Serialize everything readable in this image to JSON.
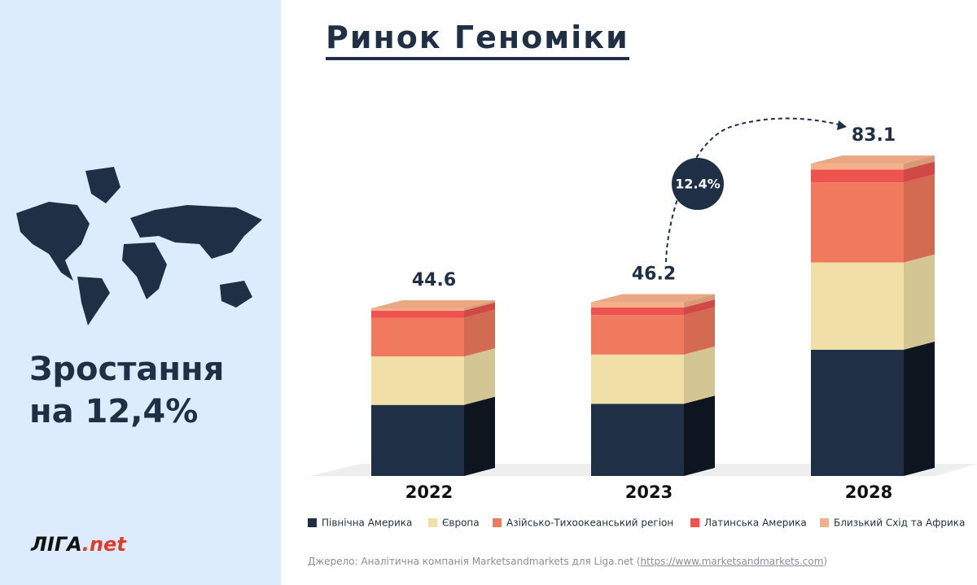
{
  "sidebar": {
    "headline": "Зростання на 12,4%"
  },
  "logo": {
    "brand": "ЛІГА",
    "suffix": ".net"
  },
  "source": {
    "prefix": "Джерело: Аналітична компанія Marketsandmarkets для Liga.net (",
    "link": "https://www.marketsandmarkets.com",
    "suffix": ")"
  },
  "chart_data": {
    "type": "bar",
    "stacked": true,
    "title": "Ринок Геноміки",
    "categories": [
      "2022",
      "2023",
      "2028"
    ],
    "series": [
      {
        "name": "Північна Америка",
        "color": "#1f2f45",
        "values": [
          18.9,
          19.2,
          33.6
        ]
      },
      {
        "name": "Європа",
        "color": "#f0e0a8",
        "values": [
          12.9,
          13.1,
          23.2
        ]
      },
      {
        "name": "Азійсько-Тихоокеанський регіон",
        "color": "#f07a5e",
        "values": [
          10.3,
          10.5,
          21.3
        ]
      },
      {
        "name": "Латинська Америка",
        "color": "#ee5350",
        "values": [
          1.9,
          2.0,
          3.4
        ]
      },
      {
        "name": "Близький Схід та Африка",
        "color": "#f5b08a",
        "values": [
          0.6,
          1.4,
          1.6
        ]
      }
    ],
    "totals": [
      44.6,
      46.2,
      83.1
    ],
    "growth_label": "12.4%"
  }
}
